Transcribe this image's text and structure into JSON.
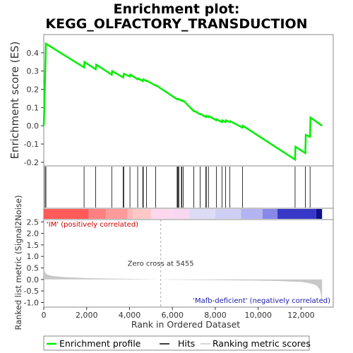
{
  "title_line1": "Enrichment plot:",
  "title_line2": "KEGG_OLFACTORY_TRANSDUCTION",
  "colors": {
    "es_line": "#00ee00",
    "hits": "#000000",
    "metric_fill": "#c8c8c8",
    "zero_cross": "#aaaaaa",
    "pos_label": "#cc0000",
    "neg_label": "#1a1aaa",
    "frame": "#888888"
  },
  "chart_data": [
    {
      "type": "line",
      "name": "enrichment-profile",
      "ylabel": "Enrichment score (ES)",
      "xlim": [
        0,
        13500
      ],
      "ylim": [
        -0.22,
        0.5
      ],
      "yticks": [
        -0.2,
        -0.1,
        0.0,
        0.1,
        0.2,
        0.3,
        0.4
      ],
      "ytick_labels": [
        "-0.2",
        "-0.1",
        "0.0",
        "0.1",
        "0.2",
        "0.3",
        "0.4"
      ],
      "grid": false,
      "x": [
        0,
        60,
        100,
        1880,
        1900,
        2420,
        2450,
        3170,
        3190,
        3700,
        3730,
        4020,
        4040,
        4380,
        4400,
        4620,
        4640,
        4790,
        4810,
        5220,
        5240,
        6220,
        6240,
        6280,
        6300,
        6420,
        6440,
        6500,
        6520,
        7000,
        7020,
        7290,
        7310,
        7560,
        7580,
        7680,
        7700,
        8050,
        8070,
        8310,
        8330,
        8480,
        8500,
        8680,
        8700,
        9270,
        9290,
        11720,
        11740,
        12200,
        12220,
        12420,
        12440,
        12980
      ],
      "y": [
        0.0,
        0.25,
        0.45,
        0.32,
        0.35,
        0.31,
        0.335,
        0.28,
        0.3,
        0.265,
        0.285,
        0.27,
        0.28,
        0.255,
        0.26,
        0.245,
        0.255,
        0.245,
        0.247,
        0.22,
        0.222,
        0.145,
        0.147,
        0.144,
        0.147,
        0.137,
        0.14,
        0.135,
        0.137,
        0.08,
        0.082,
        0.063,
        0.065,
        0.048,
        0.055,
        0.048,
        0.053,
        0.03,
        0.035,
        0.02,
        0.03,
        0.02,
        0.03,
        0.02,
        0.025,
        -0.01,
        0.0,
        -0.185,
        -0.115,
        -0.15,
        -0.05,
        -0.06,
        0.045,
        0.0
      ]
    },
    {
      "type": "scatter",
      "name": "hits",
      "x": [
        60,
        100,
        1880,
        2420,
        3170,
        3700,
        3730,
        4020,
        4380,
        4620,
        4640,
        4790,
        5220,
        6220,
        6240,
        6280,
        6300,
        6420,
        6440,
        6500,
        7000,
        7290,
        7560,
        7580,
        7680,
        8050,
        8310,
        8480,
        8680,
        9270,
        11720,
        12200,
        12420
      ]
    },
    {
      "type": "area",
      "name": "ranking-metric-scores",
      "ylabel": "Ranked list metric (Signal2Noise)",
      "xlabel": "Rank in Ordered Dataset",
      "xlim": [
        0,
        13500
      ],
      "ylim": [
        -1.2,
        2.6
      ],
      "yticks": [
        -1.0,
        -0.5,
        0.0,
        0.5,
        1.0,
        1.5,
        2.0,
        2.5
      ],
      "ytick_labels": [
        "-1.0",
        "-0.5",
        "0.0",
        "0.5",
        "1.0",
        "1.5",
        "2.0",
        "2.5"
      ],
      "xticks": [
        0,
        2000,
        4000,
        6000,
        8000,
        10000,
        12000
      ],
      "xtick_labels": [
        "0",
        "2,000",
        "4,000",
        "6,000",
        "8,000",
        "10,000",
        "12,000"
      ],
      "x": [
        0,
        20,
        60,
        150,
        300,
        500,
        1000,
        1500,
        2000,
        3000,
        4000,
        5000,
        5455,
        6000,
        7000,
        8000,
        9000,
        10000,
        11000,
        11500,
        12000,
        12400,
        12700,
        12850,
        12920,
        12960,
        12980
      ],
      "y": [
        0.52,
        0.42,
        0.3,
        0.22,
        0.17,
        0.14,
        0.1,
        0.08,
        0.06,
        0.04,
        0.025,
        0.01,
        0.0,
        -0.01,
        -0.02,
        -0.03,
        -0.04,
        -0.05,
        -0.07,
        -0.09,
        -0.11,
        -0.16,
        -0.25,
        -0.4,
        -0.6,
        -0.9,
        -1.2
      ],
      "zero_cross_label": "Zero cross at 5455",
      "zero_cross_x": 5455,
      "positive_label": "'IM' (positively correlated)",
      "negative_label": "'Mafb-deficient' (negatively correlated)",
      "heat_bar": {
        "x_end": 12980,
        "segments": [
          {
            "x0": 0,
            "x1": 2100,
            "color": "#ff5a5a"
          },
          {
            "x0": 2100,
            "x1": 2900,
            "color": "#ff8080"
          },
          {
            "x0": 2900,
            "x1": 3900,
            "color": "#ff9a9a"
          },
          {
            "x0": 3900,
            "x1": 4150,
            "color": "#ffb8b8"
          },
          {
            "x0": 4150,
            "x1": 5000,
            "color": "#ffc8c8"
          },
          {
            "x0": 5000,
            "x1": 6000,
            "color": "#ffd8ee"
          },
          {
            "x0": 6000,
            "x1": 6800,
            "color": "#f8d8f0"
          },
          {
            "x0": 6800,
            "x1": 8000,
            "color": "#dcdcf6"
          },
          {
            "x0": 8000,
            "x1": 9200,
            "color": "#cfcff5"
          },
          {
            "x0": 9200,
            "x1": 10200,
            "color": "#b4b4f2"
          },
          {
            "x0": 10200,
            "x1": 10900,
            "color": "#8888e8"
          },
          {
            "x0": 10900,
            "x1": 12700,
            "color": "#3838c8"
          },
          {
            "x0": 12700,
            "x1": 12980,
            "color": "#10108e"
          }
        ]
      }
    }
  ],
  "legend": [
    {
      "label": "Enrichment profile",
      "color": "#00ee00"
    },
    {
      "label": "Hits",
      "color": "#000000"
    },
    {
      "label": "Ranking metric scores",
      "color": "#c8c8c8"
    }
  ]
}
